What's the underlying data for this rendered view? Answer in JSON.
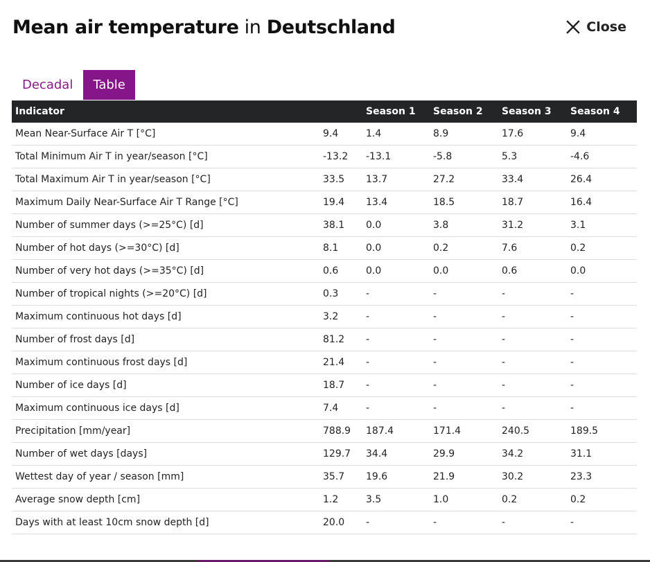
{
  "header": {
    "title_bold_1": "Mean air temperature",
    "title_connector": " in ",
    "title_bold_2": "Deutschland",
    "close_label": "Close"
  },
  "tabs": [
    {
      "label": "Decadal",
      "active": false
    },
    {
      "label": "Table",
      "active": true
    }
  ],
  "table": {
    "headers": [
      "Indicator",
      "",
      "Season 1",
      "Season 2",
      "Season 3",
      "Season 4"
    ],
    "rows": [
      [
        "Mean Near-Surface Air T [°C]",
        "9.4",
        "1.4",
        "8.9",
        "17.6",
        "9.4"
      ],
      [
        "Total Minimum Air T in year/season [°C]",
        "-13.2",
        "-13.1",
        "-5.8",
        "5.3",
        "-4.6"
      ],
      [
        "Total Maximum Air T in year/season [°C]",
        "33.5",
        "13.7",
        "27.2",
        "33.4",
        "26.4"
      ],
      [
        "Maximum Daily Near-Surface Air T Range [°C]",
        "19.4",
        "13.4",
        "18.5",
        "18.7",
        "16.4"
      ],
      [
        "Number of summer days (>=25°C) [d]",
        "38.1",
        "0.0",
        "3.8",
        "31.2",
        "3.1"
      ],
      [
        "Number of hot days (>=30°C) [d]",
        "8.1",
        "0.0",
        "0.2",
        "7.6",
        "0.2"
      ],
      [
        "Number of very hot days (>=35°C) [d]",
        "0.6",
        "0.0",
        "0.0",
        "0.6",
        "0.0"
      ],
      [
        "Number of tropical nights (>=20°C) [d]",
        "0.3",
        "-",
        "-",
        "-",
        "-"
      ],
      [
        "Maximum continuous hot days [d]",
        "3.2",
        "-",
        "-",
        "-",
        "-"
      ],
      [
        "Number of frost days [d]",
        "81.2",
        "-",
        "-",
        "-",
        "-"
      ],
      [
        "Maximum continuous frost days [d]",
        "21.4",
        "-",
        "-",
        "-",
        "-"
      ],
      [
        "Number of ice days [d]",
        "18.7",
        "-",
        "-",
        "-",
        "-"
      ],
      [
        "Maximum continuous ice days [d]",
        "7.4",
        "-",
        "-",
        "-",
        "-"
      ],
      [
        "Precipitation [mm/year]",
        "788.9",
        "187.4",
        "171.4",
        "240.5",
        "189.5"
      ],
      [
        "Number of wet days [days]",
        "129.7",
        "34.4",
        "29.9",
        "34.2",
        "31.1"
      ],
      [
        "Wettest day of year / season [mm]",
        "35.7",
        "19.6",
        "21.9",
        "30.2",
        "23.3"
      ],
      [
        "Average snow depth [cm]",
        "1.2",
        "3.5",
        "1.0",
        "0.2",
        "0.2"
      ],
      [
        "Days with at least 10cm snow depth [d]",
        "20.0",
        "-",
        "-",
        "-",
        "-"
      ]
    ]
  },
  "colors": {
    "accent": "#86158a",
    "header_bg": "#232526",
    "row_border": "#dcdcdc"
  },
  "icons": {
    "close": "close-icon"
  }
}
